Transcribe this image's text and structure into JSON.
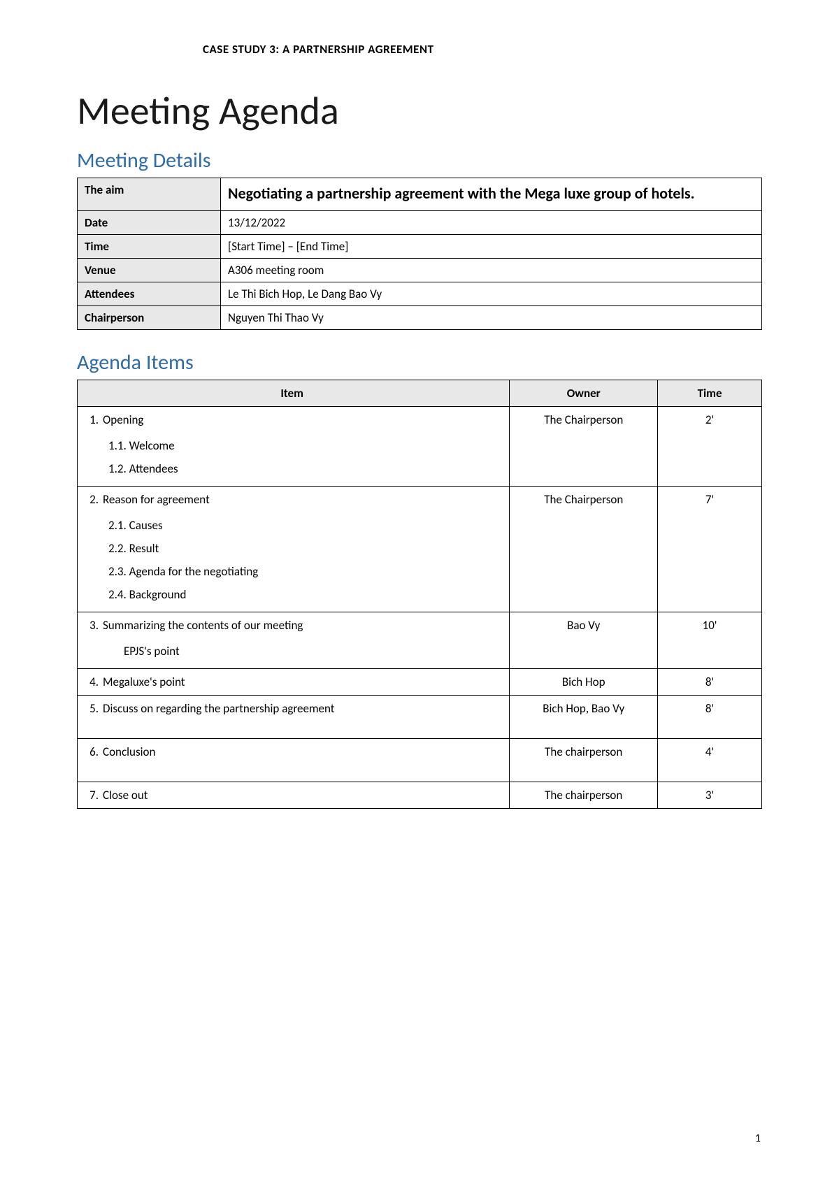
{
  "header": "CASE STUDY 3: A PARTNERSHIP AGREEMENT",
  "title": "Meeting Agenda",
  "sections": {
    "details_heading": "Meeting Details",
    "agenda_heading": "Agenda Items"
  },
  "details": {
    "labels": {
      "aim": "The aim",
      "date": "Date",
      "time": "Time",
      "venue": "Venue",
      "attendees": "Attendees",
      "chairperson": "Chairperson"
    },
    "values": {
      "aim": "Negotiating a partnership agreement with the Mega luxe group of hotels.",
      "date": "13/12/2022",
      "time": "[Start Time] – [End Time]",
      "venue": "A306 meeting room",
      "attendees": "Le Thi Bich Hop, Le Dang Bao Vy",
      "chairperson": "Nguyen Thi Thao Vy"
    }
  },
  "agenda": {
    "headers": {
      "item": "Item",
      "owner": "Owner",
      "time": "Time"
    },
    "items": [
      {
        "num": "1.",
        "title": "Opening",
        "owner": "The Chairperson",
        "time": "2'",
        "subs": [
          "1.1.  Welcome",
          "1.2.  Attendees"
        ]
      },
      {
        "num": "2.",
        "title": "Reason for agreement",
        "owner": "The Chairperson",
        "time": "7'",
        "subs": [
          "2.1.  Causes",
          "2.2.  Result",
          "2.3.  Agenda for the negotiating",
          "2.4.  Background"
        ]
      },
      {
        "num": "3.",
        "title": "Summarizing the contents of our meeting",
        "owner": "Bao Vy",
        "time": "10'",
        "subs_indent": [
          "EPJS's point"
        ]
      },
      {
        "num": "4.",
        "title": "Megaluxe's point",
        "owner": "Bich Hop",
        "time": "8'"
      },
      {
        "num": "5.",
        "title": "Discuss on regarding the partnership agreement",
        "owner": "Bich Hop, Bao Vy",
        "time": "8'",
        "extra_space": true
      },
      {
        "num": "6.",
        "title": "Conclusion",
        "owner": "The chairperson",
        "time": "4'",
        "extra_space": true
      },
      {
        "num": "7.",
        "title": "Close out",
        "owner": "The chairperson",
        "time": "3'"
      }
    ]
  },
  "page_number": "1",
  "colors": {
    "heading_blue": "#2e6ba8",
    "border": "#000000",
    "label_bg": "#e8e8e8",
    "background": "#ffffff"
  }
}
